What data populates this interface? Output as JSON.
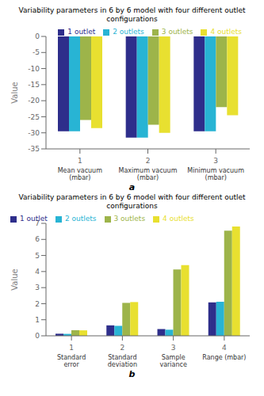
{
  "chart_data": [
    {
      "type": "bar",
      "title": "Variability parameters in 6 by 6 model with four different outlet configurations",
      "ylabel": "Value",
      "x": [
        1,
        2,
        3
      ],
      "categories": [
        "Mean vacuum (mbar)",
        "Maximum vacuum (mbar)",
        "Minimum vacuum (mbar)"
      ],
      "xlim": [
        0.5,
        3.5
      ],
      "xticks": [
        1,
        2,
        3
      ],
      "ylim": [
        -35,
        0
      ],
      "yticks": [
        0,
        -5,
        -10,
        -15,
        -20,
        -25,
        -30,
        -35
      ],
      "legend": "upper right",
      "annotations": [
        "a"
      ],
      "series": [
        {
          "name": "1 outlet",
          "color": "#2e2e8b",
          "values": [
            -29.5,
            -31.5,
            -29.5
          ]
        },
        {
          "name": "2 outlets",
          "color": "#28b4d4",
          "values": [
            -29.5,
            -31.5,
            -29.5
          ]
        },
        {
          "name": "3 outlets",
          "color": "#9db44a",
          "values": [
            -26.0,
            -27.5,
            -22.0
          ]
        },
        {
          "name": "4 outlets",
          "color": "#e8e030",
          "values": [
            -28.5,
            -30.0,
            -24.5
          ]
        }
      ]
    },
    {
      "type": "bar",
      "title": "Variability parameters in 6 by 6 model with four different outlet configurations",
      "ylabel": "Value",
      "x": [
        1,
        2,
        3,
        4
      ],
      "categories": [
        "Standard error",
        "Standard deviation",
        "Sample variance",
        "Range (mbar)"
      ],
      "xlim": [
        0.5,
        4.5
      ],
      "xticks": [
        1,
        2,
        3,
        4
      ],
      "ylim": [
        0,
        7
      ],
      "yticks": [
        0,
        1,
        2,
        3,
        4,
        5,
        6,
        7
      ],
      "legend": "upper left",
      "annotations": [
        "b"
      ],
      "series": [
        {
          "name": "1 outlet",
          "color": "#2e2e8b",
          "values": [
            0.13,
            0.65,
            0.42,
            2.08
          ]
        },
        {
          "name": "2 outlets",
          "color": "#28b4d4",
          "values": [
            0.12,
            0.62,
            0.38,
            2.12
          ]
        },
        {
          "name": "3 outlets",
          "color": "#9db44a",
          "values": [
            0.35,
            2.05,
            4.13,
            6.55
          ]
        },
        {
          "name": "4 outlets",
          "color": "#e8e030",
          "values": [
            0.34,
            2.1,
            4.4,
            6.8
          ]
        }
      ]
    }
  ]
}
